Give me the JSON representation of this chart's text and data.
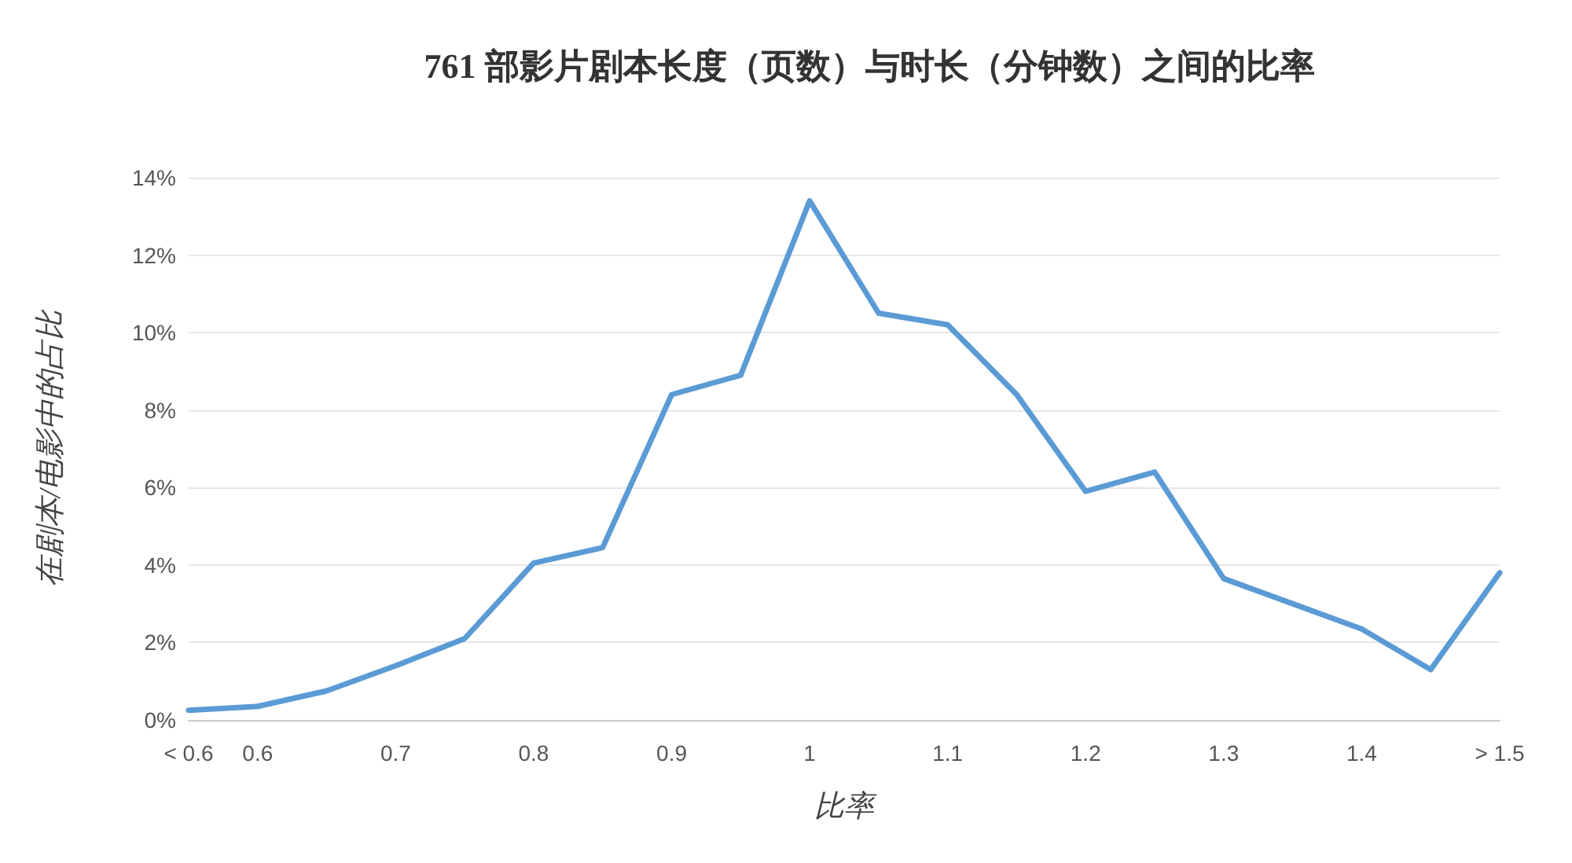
{
  "chart_data": {
    "type": "line",
    "title": "761 部影片剧本长度（页数）与时长（分钟数）之间的比率",
    "xlabel": "比率",
    "ylabel": "在剧本/电影中的占比",
    "categories": [
      "< 0.6",
      "0.6",
      null,
      "0.7",
      null,
      "0.8",
      null,
      "0.9",
      null,
      "1",
      null,
      "1.1",
      null,
      "1.2",
      null,
      "1.3",
      null,
      "1.4",
      null,
      "> 1.5"
    ],
    "series": [
      {
        "color": "#5b9bd5",
        "values": [
          0.25,
          0.35,
          0.75,
          1.4,
          2.1,
          4.05,
          4.45,
          8.4,
          8.9,
          13.4,
          10.5,
          10.2,
          8.4,
          5.9,
          6.4,
          3.65,
          3.0,
          2.35,
          1.3,
          3.8
        ]
      }
    ],
    "ylim": [
      0,
      14
    ],
    "yticks": [
      {
        "value": 0,
        "label": "0%"
      },
      {
        "value": 2,
        "label": "2%"
      },
      {
        "value": 4,
        "label": "4%"
      },
      {
        "value": 6,
        "label": "6%"
      },
      {
        "value": 8,
        "label": "8%"
      },
      {
        "value": 10,
        "label": "10%"
      },
      {
        "value": 12,
        "label": "12%"
      },
      {
        "value": 14,
        "label": "14%"
      }
    ],
    "grid": "y",
    "marker": "none",
    "line_style": "solid"
  }
}
